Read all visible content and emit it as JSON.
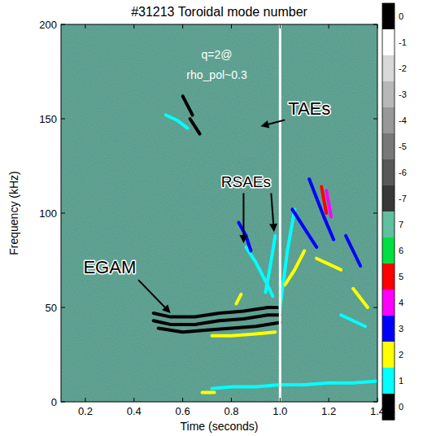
{
  "chart_data": {
    "type": "spectrogram",
    "title": "#31213 Toroidal mode number",
    "x_label": "Time (seconds)",
    "y_label": "Frequency (kHz)",
    "xlim": [
      0.1,
      1.4
    ],
    "xticks": [
      0.2,
      0.4,
      0.6,
      0.8,
      {
        "value": 1.0,
        "label": "1.0"
      },
      1.2,
      1.4
    ],
    "ylim": [
      0,
      200
    ],
    "yticks": [
      0,
      50,
      100,
      150,
      200
    ],
    "colorbar_ticks": [
      0,
      -1,
      -2,
      -3,
      -4,
      -5,
      -6,
      -7,
      7,
      6,
      5,
      4,
      3,
      2,
      1,
      0
    ],
    "colorbar_colors": [
      "#000000",
      "#ffffff",
      "#d8d8d8",
      "#b8b8b8",
      "#989898",
      "#787878",
      "#585858",
      "#383838",
      "#5fbf9f",
      "#00e040",
      "#ff0000",
      "#ff00ff",
      "#0000ff",
      "#ffff00",
      "#00ffff",
      "#000000"
    ],
    "vlines": [
      1.0
    ],
    "modes": [
      {
        "n": 0,
        "x": [
          0.48,
          0.55,
          0.65,
          0.75,
          0.85,
          0.95,
          1.0
        ],
        "y": [
          47,
          45,
          45,
          47,
          48,
          50,
          50
        ]
      },
      {
        "n": 0,
        "x": [
          0.48,
          0.55,
          0.65,
          0.75,
          0.85,
          0.95,
          1.0
        ],
        "y": [
          43,
          41,
          41,
          43,
          44,
          46,
          46
        ]
      },
      {
        "n": 0,
        "x": [
          0.5,
          0.6,
          0.7,
          0.8,
          0.9,
          1.0
        ],
        "y": [
          39,
          37,
          38,
          39,
          40,
          42
        ]
      },
      {
        "n": 2,
        "x": [
          0.72,
          0.8,
          0.9,
          0.98
        ],
        "y": [
          35,
          35,
          36,
          37
        ]
      },
      {
        "n": 1,
        "x": [
          0.72,
          0.8,
          0.9,
          1.0,
          1.1,
          1.2,
          1.3,
          1.4
        ],
        "y": [
          7,
          8,
          8,
          9,
          9,
          10,
          10,
          11
        ]
      },
      {
        "n": 2,
        "x": [
          0.68,
          0.73
        ],
        "y": [
          5,
          5
        ]
      },
      {
        "n": 2,
        "x": [
          0.82,
          0.84
        ],
        "y": [
          52,
          57
        ]
      },
      {
        "n": 1,
        "x": [
          0.53,
          0.58,
          0.62
        ],
        "y": [
          152,
          149,
          145
        ]
      },
      {
        "n": 0,
        "x": [
          0.6,
          0.64
        ],
        "y": [
          162,
          152
        ]
      },
      {
        "n": 0,
        "x": [
          0.63,
          0.67
        ],
        "y": [
          150,
          142
        ]
      },
      {
        "n": 1,
        "x": [
          0.86,
          0.9,
          0.94,
          0.97
        ],
        "y": [
          82,
          74,
          64,
          56
        ]
      },
      {
        "n": 1,
        "x": [
          0.94,
          0.96,
          0.98
        ],
        "y": [
          58,
          72,
          88
        ]
      },
      {
        "n": 3,
        "x": [
          0.83,
          0.86,
          0.88
        ],
        "y": [
          95,
          88,
          80
        ]
      },
      {
        "n": 1,
        "x": [
          1.0,
          1.03,
          1.06
        ],
        "y": [
          50,
          80,
          102
        ]
      },
      {
        "n": 2,
        "x": [
          1.02,
          1.06,
          1.1
        ],
        "y": [
          62,
          70,
          80
        ]
      },
      {
        "n": 3,
        "x": [
          1.05,
          1.1,
          1.15
        ],
        "y": [
          102,
          92,
          82
        ]
      },
      {
        "n": 3,
        "x": [
          1.12,
          1.18,
          1.22
        ],
        "y": [
          118,
          98,
          86
        ]
      },
      {
        "n": 5,
        "x": [
          1.17,
          1.19
        ],
        "y": [
          114,
          100
        ]
      },
      {
        "n": 4,
        "x": [
          1.19,
          1.21
        ],
        "y": [
          112,
          98
        ]
      },
      {
        "n": 2,
        "x": [
          1.15,
          1.25
        ],
        "y": [
          76,
          70
        ]
      },
      {
        "n": 3,
        "x": [
          1.27,
          1.33
        ],
        "y": [
          88,
          72
        ]
      },
      {
        "n": 2,
        "x": [
          1.3,
          1.36
        ],
        "y": [
          60,
          50
        ]
      },
      {
        "n": 1,
        "x": [
          1.25,
          1.35
        ],
        "y": [
          46,
          40
        ]
      }
    ],
    "annotations": [
      {
        "text": "q=2@",
        "x": 0.74,
        "y": 182,
        "color": "#ffffff"
      },
      {
        "text": "rho_pol~0.3",
        "x": 0.74,
        "y": 171,
        "color": "#ffffff"
      },
      {
        "text": "TAEs",
        "x": 1.12,
        "y": 152,
        "color": "#000000",
        "arrow_to": [
          [
            0.92,
            146
          ]
        ]
      },
      {
        "text": "RSAEs",
        "x": 0.86,
        "y": 114,
        "color": "#000000",
        "arrow_to": [
          [
            0.85,
            84
          ],
          [
            0.975,
            90
          ]
        ]
      },
      {
        "text": "EGAM",
        "x": 0.3,
        "y": 68,
        "color": "#000000",
        "arrow_to": [
          [
            0.55,
            47
          ]
        ]
      }
    ]
  }
}
